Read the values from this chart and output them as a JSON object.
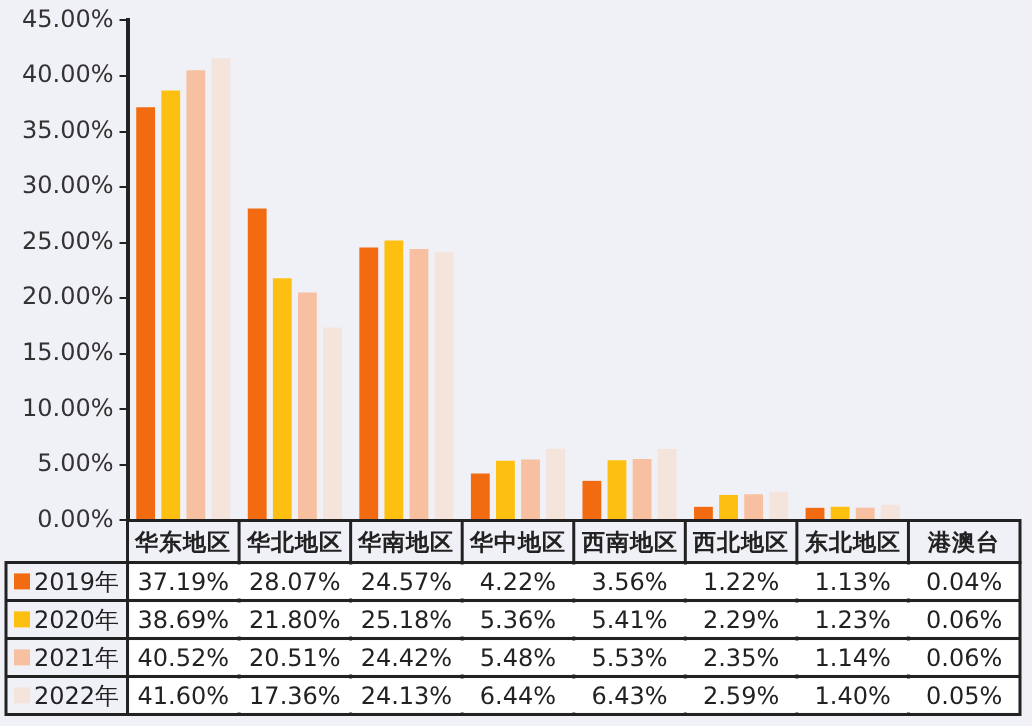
{
  "chart_data": {
    "type": "bar",
    "categories": [
      "华东地区",
      "华北地区",
      "华南地区",
      "华中地区",
      "西南地区",
      "西北地区",
      "东北地区",
      "港澳台"
    ],
    "series": [
      {
        "name": "2019年",
        "color": "#f26b10",
        "values": [
          37.19,
          28.07,
          24.57,
          4.22,
          3.56,
          1.22,
          1.13,
          0.04
        ],
        "value_labels": [
          "37.19%",
          "28.07%",
          "24.57%",
          "4.22%",
          "3.56%",
          "1.22%",
          "1.13%",
          "0.04%"
        ]
      },
      {
        "name": "2020年",
        "color": "#fdc010",
        "values": [
          38.69,
          21.8,
          25.18,
          5.36,
          5.41,
          2.29,
          1.23,
          0.06
        ],
        "value_labels": [
          "38.69%",
          "21.80%",
          "25.18%",
          "5.36%",
          "5.41%",
          "2.29%",
          "1.23%",
          "0.06%"
        ]
      },
      {
        "name": "2021年",
        "color": "#f7c0a0",
        "values": [
          40.52,
          20.51,
          24.42,
          5.48,
          5.53,
          2.35,
          1.14,
          0.06
        ],
        "value_labels": [
          "40.52%",
          "20.51%",
          "24.42%",
          "5.48%",
          "5.53%",
          "2.35%",
          "1.14%",
          "0.06%"
        ]
      },
      {
        "name": "2022年",
        "color": "#f5e4dc",
        "values": [
          41.6,
          17.36,
          24.13,
          6.44,
          6.43,
          2.59,
          1.4,
          0.05
        ],
        "value_labels": [
          "41.60%",
          "17.36%",
          "24.13%",
          "6.44%",
          "6.43%",
          "2.59%",
          "1.40%",
          "0.05%"
        ]
      }
    ],
    "ylim": [
      0,
      45
    ],
    "yticks": [
      {
        "value": 0,
        "label": "0.00%"
      },
      {
        "value": 5,
        "label": "5.00%"
      },
      {
        "value": 10,
        "label": "10.00%"
      },
      {
        "value": 15,
        "label": "15.00%"
      },
      {
        "value": 20,
        "label": "20.00%"
      },
      {
        "value": 25,
        "label": "25.00%"
      },
      {
        "value": 30,
        "label": "30.00%"
      },
      {
        "value": 35,
        "label": "35.00%"
      },
      {
        "value": 40,
        "label": "40.00%"
      },
      {
        "value": 45,
        "label": "45.00%"
      }
    ],
    "grid": false,
    "legend": "bottom"
  }
}
